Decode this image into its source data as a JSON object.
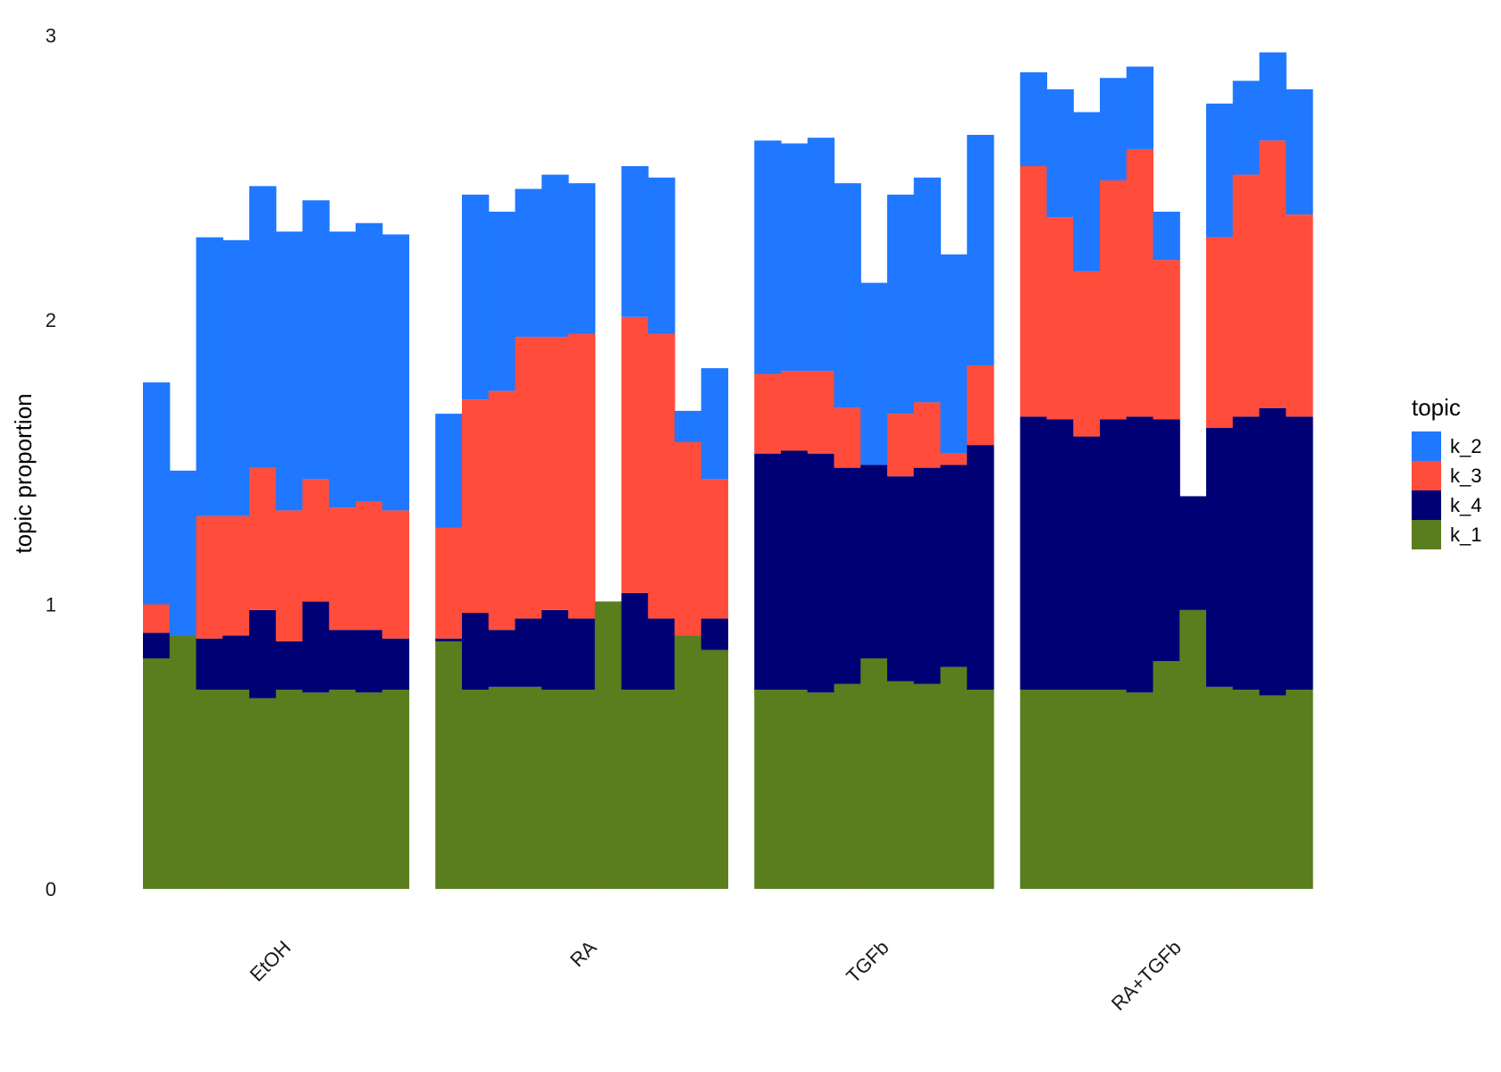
{
  "chart_data": {
    "type": "bar",
    "stacked": true,
    "ylabel": "topic proportion",
    "ylim": [
      0,
      3
    ],
    "yticks": [
      "0",
      "1",
      "2",
      "3"
    ],
    "grid": false,
    "legend": {
      "title": "topic",
      "position": "right",
      "entries": [
        "k_2",
        "k_3",
        "k_4",
        "k_1"
      ]
    },
    "stack_order": [
      "k_1",
      "k_4",
      "k_3",
      "k_2"
    ],
    "colors": {
      "k_1": "#5a7d1e",
      "k_4": "#000075",
      "k_3": "#ff4c3b",
      "k_2": "#1f78ff"
    },
    "groups": [
      {
        "label": "EtOH",
        "bars": [
          {
            "k_1": 0.81,
            "k_4": 0.09,
            "k_3": 0.1,
            "k_2": 0.78
          },
          {
            "k_1": 0.89,
            "k_4": 0.0,
            "k_3": 0.0,
            "k_2": 0.58
          },
          {
            "k_1": 0.7,
            "k_4": 0.18,
            "k_3": 0.43,
            "k_2": 0.98
          },
          {
            "k_1": 0.7,
            "k_4": 0.19,
            "k_3": 0.42,
            "k_2": 0.97
          },
          {
            "k_1": 0.67,
            "k_4": 0.31,
            "k_3": 0.5,
            "k_2": 0.99
          },
          {
            "k_1": 0.7,
            "k_4": 0.17,
            "k_3": 0.46,
            "k_2": 0.98
          },
          {
            "k_1": 0.69,
            "k_4": 0.32,
            "k_3": 0.43,
            "k_2": 0.98
          },
          {
            "k_1": 0.7,
            "k_4": 0.21,
            "k_3": 0.43,
            "k_2": 0.97
          },
          {
            "k_1": 0.69,
            "k_4": 0.22,
            "k_3": 0.45,
            "k_2": 0.98
          },
          {
            "k_1": 0.7,
            "k_4": 0.18,
            "k_3": 0.45,
            "k_2": 0.97
          }
        ]
      },
      {
        "label": "RA",
        "bars": [
          {
            "k_1": 0.87,
            "k_4": 0.01,
            "k_3": 0.39,
            "k_2": 0.4
          },
          {
            "k_1": 0.7,
            "k_4": 0.27,
            "k_3": 0.75,
            "k_2": 0.72
          },
          {
            "k_1": 0.71,
            "k_4": 0.2,
            "k_3": 0.84,
            "k_2": 0.63
          },
          {
            "k_1": 0.71,
            "k_4": 0.24,
            "k_3": 0.99,
            "k_2": 0.52
          },
          {
            "k_1": 0.7,
            "k_4": 0.28,
            "k_3": 0.96,
            "k_2": 0.57
          },
          {
            "k_1": 0.7,
            "k_4": 0.25,
            "k_3": 1.0,
            "k_2": 0.53
          },
          {
            "k_1": 1.01,
            "k_4": 0.0,
            "k_3": 0.0,
            "k_2": 0.0
          },
          {
            "k_1": 0.7,
            "k_4": 0.34,
            "k_3": 0.97,
            "k_2": 0.53
          },
          {
            "k_1": 0.7,
            "k_4": 0.25,
            "k_3": 1.0,
            "k_2": 0.55
          },
          {
            "k_1": 0.89,
            "k_4": 0.0,
            "k_3": 0.68,
            "k_2": 0.11
          },
          {
            "k_1": 0.84,
            "k_4": 0.11,
            "k_3": 0.49,
            "k_2": 0.39
          }
        ]
      },
      {
        "label": "TGFb",
        "bars": [
          {
            "k_1": 0.7,
            "k_4": 0.83,
            "k_3": 0.28,
            "k_2": 0.82
          },
          {
            "k_1": 0.7,
            "k_4": 0.84,
            "k_3": 0.28,
            "k_2": 0.8
          },
          {
            "k_1": 0.69,
            "k_4": 0.84,
            "k_3": 0.29,
            "k_2": 0.82
          },
          {
            "k_1": 0.72,
            "k_4": 0.76,
            "k_3": 0.21,
            "k_2": 0.79
          },
          {
            "k_1": 0.81,
            "k_4": 0.68,
            "k_3": 0.0,
            "k_2": 0.64
          },
          {
            "k_1": 0.73,
            "k_4": 0.72,
            "k_3": 0.22,
            "k_2": 0.77
          },
          {
            "k_1": 0.72,
            "k_4": 0.76,
            "k_3": 0.23,
            "k_2": 0.79
          },
          {
            "k_1": 0.78,
            "k_4": 0.71,
            "k_3": 0.04,
            "k_2": 0.7
          },
          {
            "k_1": 0.7,
            "k_4": 0.86,
            "k_3": 0.28,
            "k_2": 0.81
          }
        ]
      },
      {
        "label": "RA+TGFb",
        "bars": [
          {
            "k_1": 0.7,
            "k_4": 0.96,
            "k_3": 0.88,
            "k_2": 0.33
          },
          {
            "k_1": 0.7,
            "k_4": 0.95,
            "k_3": 0.71,
            "k_2": 0.45
          },
          {
            "k_1": 0.7,
            "k_4": 0.89,
            "k_3": 0.58,
            "k_2": 0.56
          },
          {
            "k_1": 0.7,
            "k_4": 0.95,
            "k_3": 0.84,
            "k_2": 0.36
          },
          {
            "k_1": 0.69,
            "k_4": 0.97,
            "k_3": 0.94,
            "k_2": 0.29
          },
          {
            "k_1": 0.8,
            "k_4": 0.85,
            "k_3": 0.56,
            "k_2": 0.17
          },
          {
            "k_1": 0.98,
            "k_4": 0.4,
            "k_3": 0.0,
            "k_2": 0.0
          },
          {
            "k_1": 0.71,
            "k_4": 0.91,
            "k_3": 0.67,
            "k_2": 0.47
          },
          {
            "k_1": 0.7,
            "k_4": 0.96,
            "k_3": 0.85,
            "k_2": 0.33
          },
          {
            "k_1": 0.68,
            "k_4": 1.01,
            "k_3": 0.94,
            "k_2": 0.31
          },
          {
            "k_1": 0.7,
            "k_4": 0.96,
            "k_3": 0.71,
            "k_2": 0.44
          }
        ]
      }
    ]
  }
}
